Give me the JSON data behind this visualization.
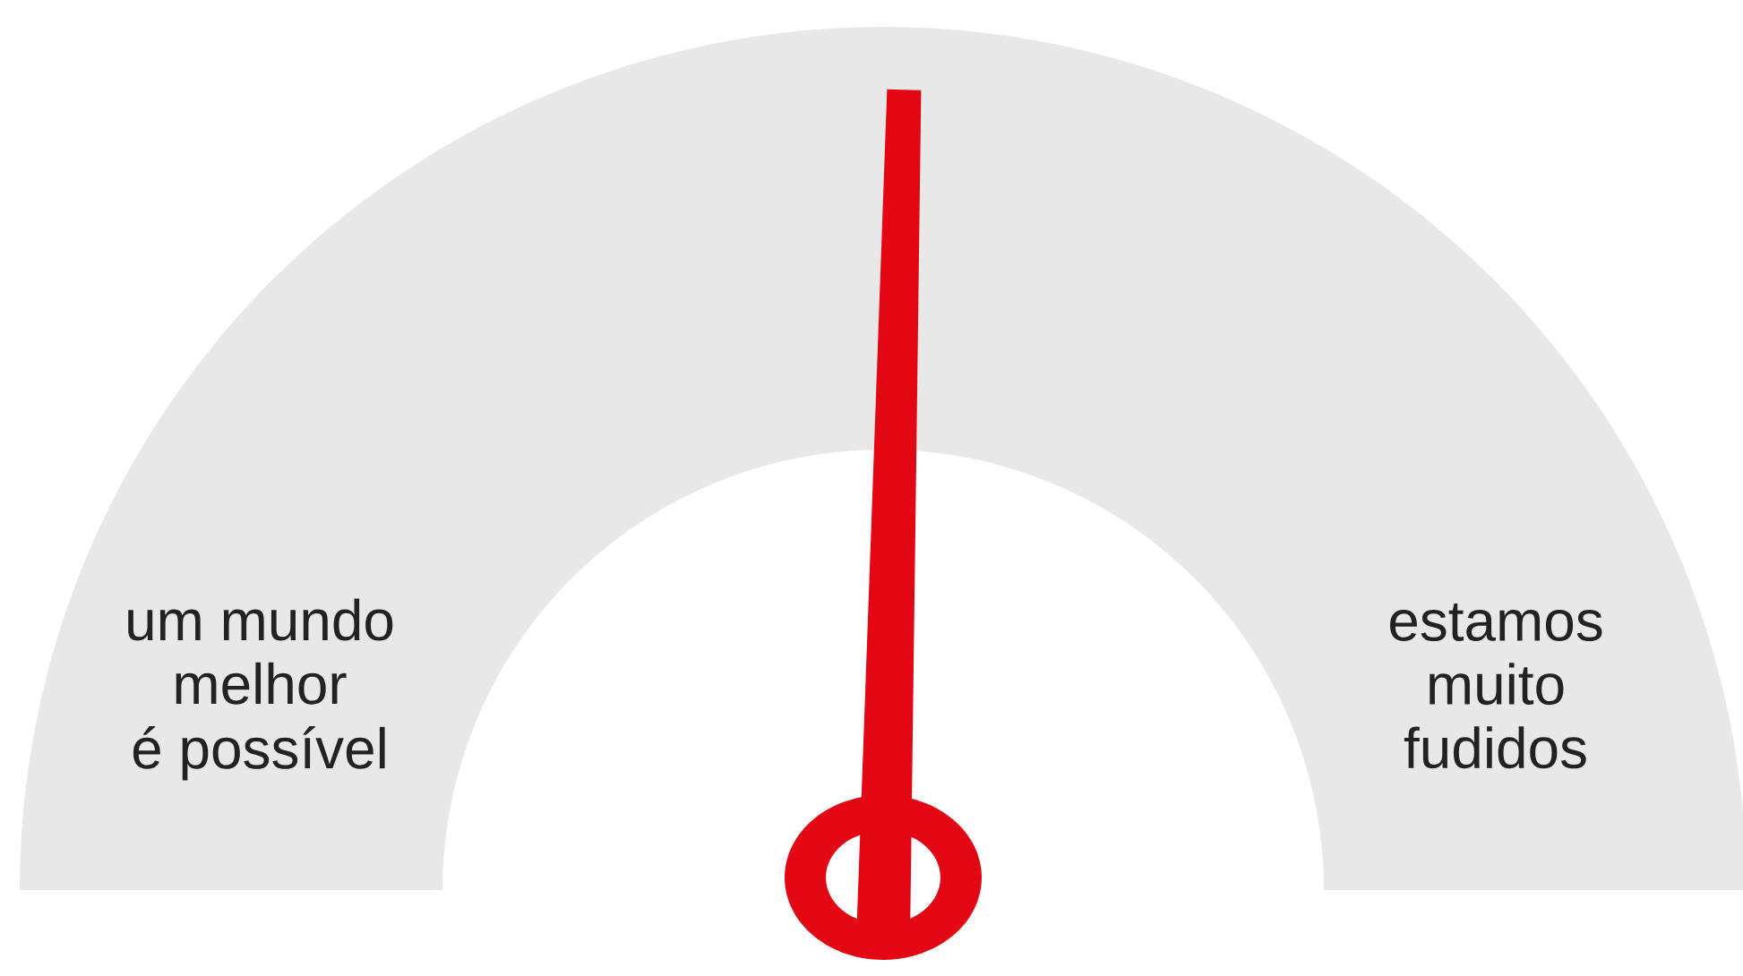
{
  "chart_data": {
    "type": "donut",
    "categories": [
      "um mundo\nmelhor\né possível",
      "estamos\nmuito\nfudidos"
    ],
    "values": [
      50,
      50
    ],
    "colors": [
      "#e8e8e8",
      "#e8e8e8"
    ],
    "needle": "estamos\nmuito\nfudidos"
  }
}
